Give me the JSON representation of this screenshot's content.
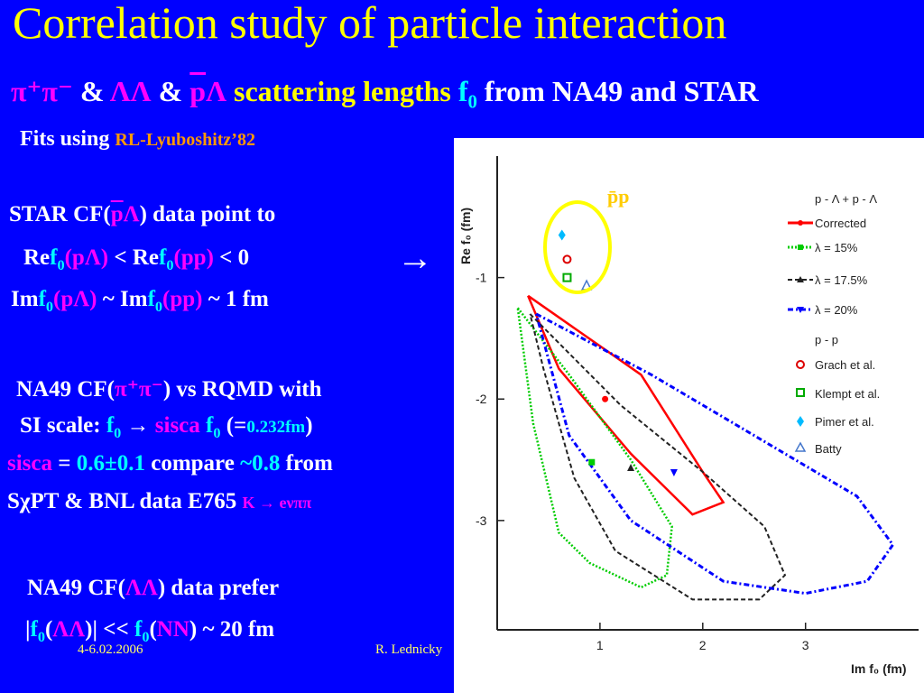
{
  "title": "Correlation study of particle interaction",
  "subtitle": {
    "pipi": "π⁺π⁻",
    "amp1": "&",
    "ll": "ΛΛ",
    "amp2": "&",
    "pbar": "p",
    "lambda": "Λ",
    "scattering": "scattering lengths",
    "f0": "f",
    "f0_sub": "0",
    "rest": "from NA49 and STAR"
  },
  "fits": {
    "label": "Fits using",
    "ref": "RL-Lyuboshitz’82"
  },
  "star_block": {
    "line1_pre": "STAR CF(",
    "line1_p": "p",
    "line1_l": "Λ",
    "line1_post": ") data point to",
    "line2_re": "Re",
    "line2_f": "f",
    "line2_sub": "0",
    "line2_arg": "(pΛ)",
    "line2_mid": "< Re",
    "line2_f2": "f",
    "line2_sub2": "0",
    "line2_arg2": "(pp)",
    "line2_post": "< 0",
    "line3_im": "Im",
    "line3_f": "f",
    "line3_sub": "0",
    "line3_arg": "(pΛ)",
    "line3_mid": "~ Im",
    "line3_f2": "f",
    "line3_sub2": "0",
    "line3_arg2": "(pp)",
    "line3_post": "~ 1 fm",
    "arrow": "→"
  },
  "na49_block": {
    "line1_pre": "NA49 CF(",
    "line1_pipi": "π⁺π⁻",
    "line1_post": ") vs RQMD  with",
    "line2_pre": "SI scale:",
    "line2_f": "f",
    "line2_sub": "0",
    "line2_arrow": "→",
    "line2_sisca": "sisca",
    "line2_f2": "f",
    "line2_sub2": "0",
    "line2_val_pre": "(=",
    "line2_val": "0.232fm",
    "line2_val_post": ")",
    "line3_sisca": "sisca",
    "line3_eq": "=",
    "line3_val": "0.6±0.1",
    "line3_compare": "compare",
    "line3_approx": "~0.8",
    "line3_from": "from",
    "line4_pre": "SχPT & BNL data E765",
    "line4_decay": "K → eνππ"
  },
  "ll_block": {
    "line1_pre": "NA49 CF(",
    "line1_ll": "ΛΛ",
    "line1_post": ") data prefer",
    "line2_bar1": "|",
    "line2_f": "f",
    "line2_sub": "0",
    "line2_arg_open": "(",
    "line2_ll": "ΛΛ",
    "line2_arg_close": ")|",
    "line2_ll_op": "<<",
    "line2_f2": "f",
    "line2_sub2": "0",
    "line2_nn_open": "(",
    "line2_nn": "NN",
    "line2_nn_close": ")",
    "line2_post": "~ 20 fm"
  },
  "footer": {
    "date": "4-6.02.2006",
    "author": "R. Lednicky"
  },
  "plot": {
    "ylabel": "Re f₀ (fm)",
    "xlabel": "Im f₀ (fm)",
    "pp_label": "p̄p",
    "legend": {
      "group1": "p - Λ + p - Λ",
      "corrected": "Corrected",
      "l15": "λ = 15%",
      "l175": "λ = 17.5%",
      "l20": "λ = 20%",
      "group2": "p - p",
      "grach": "Grach et al.",
      "klempt": "Klempt et al.",
      "pimer": "Pimer et al.",
      "batty": "Batty"
    },
    "colors": {
      "corrected": "#ff0000",
      "l15": "#00cc00",
      "l175": "#222222",
      "l20": "#0000ff",
      "grach": "#dd0000",
      "klempt": "#00aa00",
      "pimer": "#00bbff",
      "batty": "#4477cc",
      "circle": "#ffff00"
    }
  },
  "chart_data": {
    "type": "scatter",
    "xlabel": "Im f₀ (fm)",
    "ylabel": "Re f₀ (fm)",
    "xlim": [
      0,
      4.1
    ],
    "ylim": [
      -3.9,
      0
    ],
    "x_ticks": [
      "1",
      "2",
      "3"
    ],
    "y_ticks": [
      "-1",
      "-2",
      "-3"
    ],
    "legend_placement": "top-right",
    "series": [
      {
        "name": "Corrected",
        "kind": "contour",
        "points": [
          [
            0.3,
            -1.15
          ],
          [
            1.4,
            -1.8
          ],
          [
            2.0,
            -2.6
          ],
          [
            2.2,
            -2.85
          ],
          [
            1.9,
            -2.95
          ],
          [
            1.3,
            -2.45
          ],
          [
            0.6,
            -1.75
          ],
          [
            0.3,
            -1.15
          ]
        ],
        "center": [
          1.05,
          -2.0
        ]
      },
      {
        "name": "λ = 15%",
        "kind": "contour",
        "points": [
          [
            0.2,
            -1.25
          ],
          [
            0.7,
            -1.8
          ],
          [
            1.3,
            -2.5
          ],
          [
            1.7,
            -3.05
          ],
          [
            1.65,
            -3.45
          ],
          [
            1.4,
            -3.55
          ],
          [
            0.9,
            -3.35
          ],
          [
            0.6,
            -3.1
          ],
          [
            0.35,
            -2.2
          ],
          [
            0.2,
            -1.25
          ]
        ],
        "center": [
          0.92,
          -2.52
        ]
      },
      {
        "name": "λ = 17.5%",
        "kind": "contour",
        "points": [
          [
            0.32,
            -1.3
          ],
          [
            1.2,
            -2.05
          ],
          [
            2.0,
            -2.6
          ],
          [
            2.6,
            -3.05
          ],
          [
            2.8,
            -3.45
          ],
          [
            2.55,
            -3.65
          ],
          [
            1.9,
            -3.65
          ],
          [
            1.15,
            -3.25
          ],
          [
            0.75,
            -2.65
          ],
          [
            0.45,
            -1.75
          ],
          [
            0.32,
            -1.3
          ]
        ],
        "center": [
          1.3,
          -2.57
        ]
      },
      {
        "name": "λ = 20%",
        "kind": "contour",
        "points": [
          [
            0.38,
            -1.3
          ],
          [
            1.5,
            -1.8
          ],
          [
            2.6,
            -2.35
          ],
          [
            3.5,
            -2.8
          ],
          [
            3.85,
            -3.2
          ],
          [
            3.6,
            -3.5
          ],
          [
            3.0,
            -3.6
          ],
          [
            2.2,
            -3.5
          ],
          [
            1.3,
            -3.0
          ],
          [
            0.7,
            -2.3
          ],
          [
            0.38,
            -1.3
          ]
        ],
        "center": [
          1.72,
          -2.6
        ]
      },
      {
        "name": "Grach et al.",
        "kind": "point",
        "points": [
          [
            0.68,
            -0.85
          ]
        ]
      },
      {
        "name": "Klempt et al.",
        "kind": "point",
        "points": [
          [
            0.68,
            -1.0
          ]
        ]
      },
      {
        "name": "Pimer et al.",
        "kind": "point",
        "points": [
          [
            0.63,
            -0.65
          ]
        ]
      },
      {
        "name": "Batty",
        "kind": "point",
        "points": [
          [
            0.87,
            -1.07
          ]
        ]
      }
    ]
  }
}
